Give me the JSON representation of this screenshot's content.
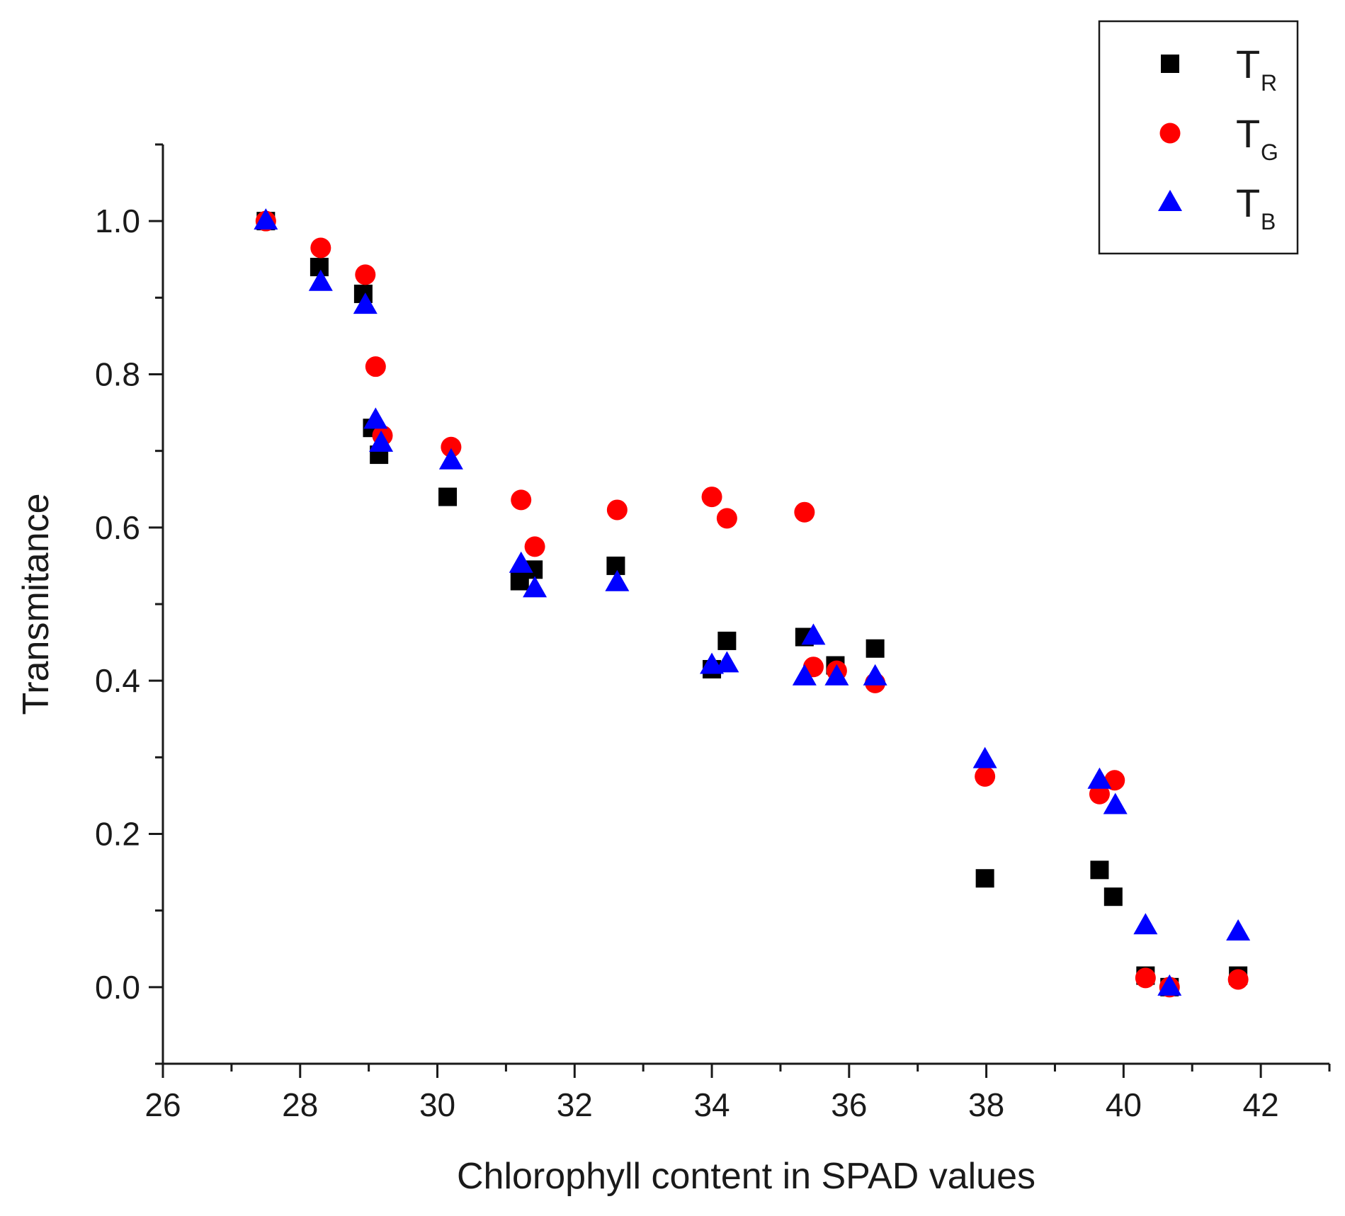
{
  "chart_data": {
    "type": "scatter",
    "title": "",
    "xlabel": "Chlorophyll content in SPAD values",
    "ylabel": "Transmitance",
    "xlim": [
      26,
      43
    ],
    "ylim": [
      -0.1,
      1.1
    ],
    "x_ticks": [
      26,
      28,
      30,
      32,
      34,
      36,
      38,
      40,
      42
    ],
    "x_tick_labels": [
      "26",
      "28",
      "30",
      "32",
      "34",
      "36",
      "38",
      "40",
      "42"
    ],
    "y_ticks": [
      0.0,
      0.2,
      0.4,
      0.6,
      0.8,
      1.0
    ],
    "y_tick_labels": [
      "0.0",
      "0.2",
      "0.4",
      "0.6",
      "0.8",
      "1.0"
    ],
    "legend_position": "top-right",
    "grid": false,
    "series": [
      {
        "name": "TR",
        "label_main": "T",
        "label_sub": "R",
        "marker": "square",
        "color": "#000000",
        "points": [
          [
            27.5,
            1.0
          ],
          [
            28.28,
            0.94
          ],
          [
            28.92,
            0.905
          ],
          [
            29.05,
            0.73
          ],
          [
            29.15,
            0.695
          ],
          [
            30.15,
            0.64
          ],
          [
            31.2,
            0.53
          ],
          [
            31.4,
            0.545
          ],
          [
            32.6,
            0.55
          ],
          [
            34.0,
            0.415
          ],
          [
            34.22,
            0.452
          ],
          [
            35.35,
            0.457
          ],
          [
            35.8,
            0.42
          ],
          [
            36.38,
            0.442
          ],
          [
            37.98,
            0.142
          ],
          [
            39.65,
            0.153
          ],
          [
            39.85,
            0.118
          ],
          [
            40.32,
            0.015
          ],
          [
            40.67,
            0.0
          ],
          [
            41.67,
            0.015
          ]
        ]
      },
      {
        "name": "TG",
        "label_main": "T",
        "label_sub": "G",
        "marker": "circle",
        "color": "#ff0000",
        "points": [
          [
            27.5,
            1.0
          ],
          [
            28.3,
            0.965
          ],
          [
            28.95,
            0.93
          ],
          [
            29.1,
            0.81
          ],
          [
            29.2,
            0.72
          ],
          [
            30.2,
            0.705
          ],
          [
            31.22,
            0.636
          ],
          [
            31.42,
            0.575
          ],
          [
            32.62,
            0.623
          ],
          [
            34.0,
            0.64
          ],
          [
            34.22,
            0.612
          ],
          [
            35.35,
            0.62
          ],
          [
            35.48,
            0.418
          ],
          [
            35.82,
            0.413
          ],
          [
            36.38,
            0.397
          ],
          [
            37.98,
            0.275
          ],
          [
            39.65,
            0.252
          ],
          [
            39.87,
            0.27
          ],
          [
            40.32,
            0.012
          ],
          [
            40.67,
            0.0
          ],
          [
            41.67,
            0.01
          ]
        ]
      },
      {
        "name": "TB",
        "label_main": "T",
        "label_sub": "B",
        "marker": "triangle",
        "color": "#0000ff",
        "points": [
          [
            27.5,
            1.0
          ],
          [
            28.3,
            0.92
          ],
          [
            28.95,
            0.89
          ],
          [
            29.1,
            0.74
          ],
          [
            29.18,
            0.71
          ],
          [
            30.2,
            0.687
          ],
          [
            31.22,
            0.552
          ],
          [
            31.42,
            0.52
          ],
          [
            32.62,
            0.528
          ],
          [
            34.0,
            0.42
          ],
          [
            34.22,
            0.422
          ],
          [
            35.35,
            0.405
          ],
          [
            35.48,
            0.458
          ],
          [
            35.82,
            0.405
          ],
          [
            36.38,
            0.405
          ],
          [
            37.98,
            0.297
          ],
          [
            39.65,
            0.27
          ],
          [
            39.88,
            0.237
          ],
          [
            40.32,
            0.08
          ],
          [
            40.67,
            0.0
          ],
          [
            41.67,
            0.072
          ]
        ]
      }
    ]
  }
}
